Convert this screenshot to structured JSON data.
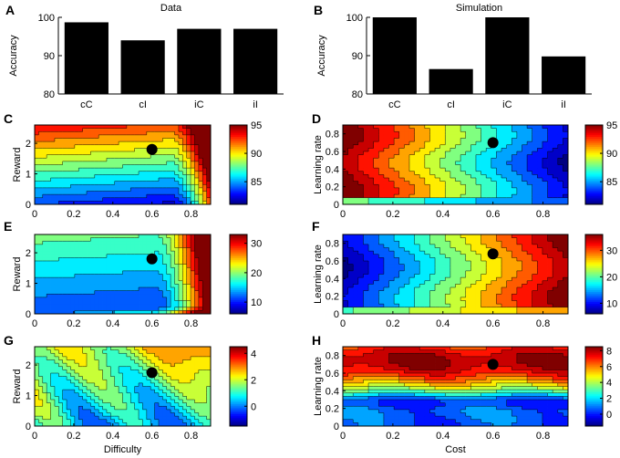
{
  "chart_data": [
    {
      "type": "bar",
      "panel": "A",
      "title": "Data",
      "ylabel": "Accuracy",
      "categories": [
        "cC",
        "cI",
        "iC",
        "iI"
      ],
      "values": [
        98.7,
        94.0,
        97.0,
        97.0
      ],
      "ylim": [
        80,
        100
      ],
      "yticks": [
        "80",
        "90",
        "100"
      ]
    },
    {
      "type": "bar",
      "panel": "B",
      "title": "Simulation",
      "ylabel": "Accuracy",
      "categories": [
        "cC",
        "cI",
        "iC",
        "iI"
      ],
      "values": [
        100,
        86.5,
        100,
        89.8
      ],
      "ylim": [
        80,
        100
      ],
      "yticks": [
        "80",
        "90",
        "100"
      ]
    },
    {
      "type": "heatmap",
      "panel": "C",
      "xlabel": "",
      "ylabel": "Reward",
      "xlim": [
        0,
        0.9
      ],
      "ylim": [
        0,
        2.6
      ],
      "xticks": [
        "0",
        "0.2",
        "0.4",
        "0.6",
        "0.8"
      ],
      "yticks": [
        "0",
        "1",
        "2"
      ],
      "colorbar": {
        "min": 81,
        "max": 95,
        "ticks": [
          "85",
          "90",
          "95"
        ]
      },
      "marker": {
        "x": 0.6,
        "y": 1.8
      }
    },
    {
      "type": "heatmap",
      "panel": "D",
      "xlabel": "",
      "ylabel": "Learning rate",
      "xlim": [
        0,
        0.9
      ],
      "ylim": [
        0,
        0.9
      ],
      "xticks": [
        "0",
        "0.2",
        "0.4",
        "0.6",
        "0.8"
      ],
      "yticks": [
        "0",
        "0.2",
        "0.4",
        "0.6",
        "0.8"
      ],
      "colorbar": {
        "min": 81,
        "max": 95,
        "ticks": [
          "85",
          "90",
          "95"
        ]
      },
      "marker": {
        "x": 0.6,
        "y": 0.7
      }
    },
    {
      "type": "heatmap",
      "panel": "E",
      "xlabel": "",
      "ylabel": "Reward",
      "xlim": [
        0,
        0.9
      ],
      "ylim": [
        0,
        2.6
      ],
      "xticks": [
        "0",
        "0.2",
        "0.4",
        "0.6",
        "0.8"
      ],
      "yticks": [
        "0",
        "1",
        "2"
      ],
      "colorbar": {
        "min": 6,
        "max": 33,
        "ticks": [
          "10",
          "20",
          "30"
        ]
      },
      "marker": {
        "x": 0.6,
        "y": 1.8
      }
    },
    {
      "type": "heatmap",
      "panel": "F",
      "xlabel": "",
      "ylabel": "Learning rate",
      "xlim": [
        0,
        0.9
      ],
      "ylim": [
        0,
        0.9
      ],
      "xticks": [
        "0",
        "0.2",
        "0.4",
        "0.6",
        "0.8"
      ],
      "yticks": [
        "0",
        "0.2",
        "0.4",
        "0.6",
        "0.8"
      ],
      "colorbar": {
        "min": 6,
        "max": 36,
        "ticks": [
          "10",
          "20",
          "30"
        ]
      },
      "marker": {
        "x": 0.6,
        "y": 0.68
      }
    },
    {
      "type": "heatmap",
      "panel": "G",
      "xlabel": "Difficulty",
      "ylabel": "Reward",
      "xlim": [
        0,
        0.9
      ],
      "ylim": [
        0,
        2.6
      ],
      "xticks": [
        "0",
        "0.2",
        "0.4",
        "0.6",
        "0.8"
      ],
      "yticks": [
        "0",
        "1",
        "2"
      ],
      "colorbar": {
        "min": -1.5,
        "max": 4.5,
        "ticks": [
          "0",
          "2",
          "4"
        ]
      },
      "marker": {
        "x": 0.6,
        "y": 1.75
      }
    },
    {
      "type": "heatmap",
      "panel": "H",
      "xlabel": "Cost",
      "ylabel": "Learning rate",
      "xlim": [
        0,
        0.9
      ],
      "ylim": [
        0,
        0.9
      ],
      "xticks": [
        "0",
        "0.2",
        "0.4",
        "0.6",
        "0.8"
      ],
      "yticks": [
        "0",
        "0.2",
        "0.4",
        "0.6",
        "0.8"
      ],
      "colorbar": {
        "min": -1.5,
        "max": 8.5,
        "ticks": [
          "0",
          "2",
          "4",
          "6",
          "8"
        ]
      },
      "marker": {
        "x": 0.6,
        "y": 0.7
      }
    }
  ]
}
